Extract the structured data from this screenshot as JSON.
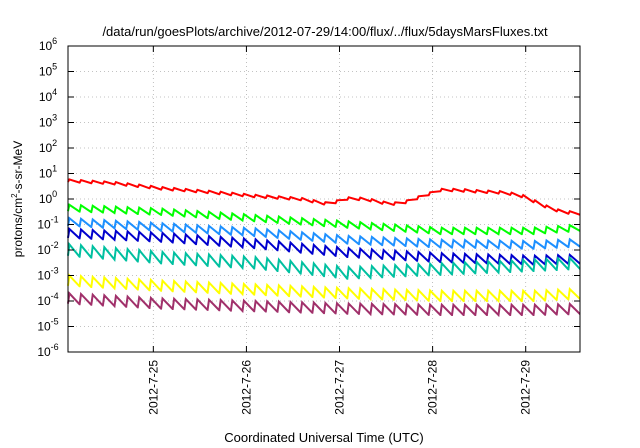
{
  "chart_data": {
    "type": "line",
    "title": "/data/run/goesPlots/archive/2012-07-29/14:00/flux/../flux/5daysMarsFluxes.txt",
    "xlabel": "Coordinated Universal Time (UTC)",
    "ylabel": {
      "prefix": "protons/cm",
      "superscript": "2",
      "suffix": "-s-sr-MeV"
    },
    "y_scale": "log",
    "ylim_exponent": [
      -6,
      6
    ],
    "y_tick_exponents": [
      "-6",
      "-5",
      "-4",
      "-3",
      "-2",
      "-1",
      "0",
      "1",
      "2",
      "3",
      "4",
      "5",
      "6"
    ],
    "y_tick_base": "10",
    "xlim_days": [
      "2012-07-24T02:00",
      "2012-07-29T14:00"
    ],
    "x_ticks": [
      "2012-7-25",
      "2012-7-26",
      "2012-7-27",
      "2012-7-28",
      "2012-7-29"
    ],
    "grid": true,
    "legend": "none",
    "series": [
      {
        "color": "#ff0000",
        "sawtooth_amplitude_decades": 0.1,
        "log10_y": [
          [
            0.0,
            0.72
          ],
          [
            0.5,
            0.62
          ],
          [
            1.0,
            0.42
          ],
          [
            1.5,
            0.28
          ],
          [
            2.0,
            0.12
          ],
          [
            2.5,
            0.0
          ],
          [
            2.8,
            -0.2
          ],
          [
            3.0,
            0.02
          ],
          [
            3.2,
            0.0
          ],
          [
            3.45,
            -0.2
          ],
          [
            3.6,
            -0.15
          ],
          [
            3.8,
            0.1
          ],
          [
            4.0,
            0.35
          ],
          [
            4.2,
            0.35
          ],
          [
            4.4,
            0.3
          ],
          [
            4.7,
            0.25
          ],
          [
            4.9,
            0.1
          ],
          [
            5.1,
            -0.25
          ],
          [
            5.3,
            -0.5
          ],
          [
            5.6,
            -0.6
          ]
        ]
      },
      {
        "color": "#00ff00",
        "sawtooth_amplitude_decades": 0.25,
        "log10_y": [
          [
            0.0,
            -0.35
          ],
          [
            1.0,
            -0.5
          ],
          [
            2.0,
            -0.75
          ],
          [
            3.0,
            -1.0
          ],
          [
            4.0,
            -1.25
          ],
          [
            5.0,
            -1.25
          ],
          [
            5.6,
            -1.1
          ]
        ]
      },
      {
        "color": "#1e90ff",
        "sawtooth_amplitude_decades": 0.3,
        "log10_y": [
          [
            0.0,
            -0.9
          ],
          [
            1.0,
            -1.1
          ],
          [
            2.0,
            -1.3
          ],
          [
            3.0,
            -1.6
          ],
          [
            4.0,
            -1.75
          ],
          [
            5.0,
            -1.8
          ],
          [
            5.6,
            -1.7
          ]
        ]
      },
      {
        "color": "#0000cd",
        "sawtooth_amplitude_decades": 0.35,
        "log10_y": [
          [
            0.0,
            -1.35
          ],
          [
            1.0,
            -1.5
          ],
          [
            2.0,
            -1.75
          ],
          [
            3.0,
            -2.1
          ],
          [
            4.0,
            -2.3
          ],
          [
            5.0,
            -2.4
          ],
          [
            5.6,
            -2.35
          ]
        ]
      },
      {
        "color": "#00c0a0",
        "sawtooth_amplitude_decades": 0.45,
        "log10_y": [
          [
            0.0,
            -2.0
          ],
          [
            1.0,
            -2.3
          ],
          [
            2.0,
            -2.5
          ],
          [
            3.0,
            -2.9
          ],
          [
            4.0,
            -2.75
          ],
          [
            5.0,
            -2.6
          ],
          [
            5.6,
            -2.5
          ]
        ]
      },
      {
        "color": "#ffff00",
        "sawtooth_amplitude_decades": 0.4,
        "log10_y": [
          [
            0.0,
            -3.2
          ],
          [
            1.0,
            -3.4
          ],
          [
            2.0,
            -3.55
          ],
          [
            3.0,
            -3.7
          ],
          [
            4.0,
            -3.8
          ],
          [
            5.0,
            -3.8
          ],
          [
            5.6,
            -3.7
          ]
        ]
      },
      {
        "color": "#a0306a",
        "sawtooth_amplitude_decades": 0.4,
        "log10_y": [
          [
            0.0,
            -3.9
          ],
          [
            1.0,
            -4.1
          ],
          [
            2.0,
            -4.2
          ],
          [
            3.0,
            -4.3
          ],
          [
            4.0,
            -4.35
          ],
          [
            5.0,
            -4.35
          ],
          [
            5.6,
            -4.3
          ]
        ]
      }
    ]
  }
}
